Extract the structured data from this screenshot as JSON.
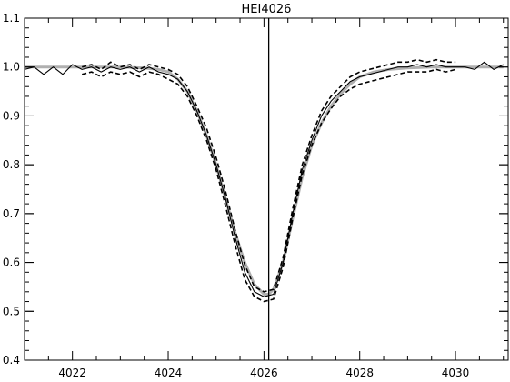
{
  "chart_data": {
    "type": "line",
    "title": "HEI4026",
    "xlabel": "",
    "ylabel": "",
    "xlim": [
      4021,
      4031.1
    ],
    "ylim": [
      0.4,
      1.1
    ],
    "x_ticks": [
      4022,
      4024,
      4026,
      4028,
      4030
    ],
    "x_tick_labels": [
      "4022",
      "4024",
      "4026",
      "4028",
      "4030"
    ],
    "y_ticks": [
      0.4,
      0.5,
      0.6,
      0.7,
      0.8,
      0.9,
      1.0,
      1.1
    ],
    "y_tick_labels": [
      "0.4",
      "0.5",
      "0.6",
      "0.7",
      "0.8",
      "0.9",
      "1.0",
      "1.1"
    ],
    "grid": false,
    "vertical_line": {
      "x": 4026.1
    },
    "series": [
      {
        "style": "solid",
        "color": "#000000",
        "x": [
          4021.0,
          4021.2,
          4021.4,
          4021.6,
          4021.8,
          4022.0,
          4022.2,
          4022.4,
          4022.6,
          4022.8,
          4023.0,
          4023.2,
          4023.4,
          4023.6,
          4023.8,
          4024.0,
          4024.2,
          4024.4,
          4024.6,
          4024.8,
          4025.0,
          4025.2,
          4025.4,
          4025.6,
          4025.8,
          4026.0,
          4026.2,
          4026.4,
          4026.6,
          4026.8,
          4027.0,
          4027.2,
          4027.4,
          4027.6,
          4027.8,
          4028.0,
          4028.2,
          4028.4,
          4028.6,
          4028.8,
          4029.0,
          4029.2,
          4029.4,
          4029.6,
          4029.8,
          4030.0,
          4030.2,
          4030.4,
          4030.6,
          4030.8,
          4031.0
        ],
        "y": [
          0.995,
          1.0,
          0.985,
          1.0,
          0.985,
          1.005,
          0.995,
          1.0,
          0.99,
          1.0,
          0.995,
          1.0,
          0.99,
          1.0,
          0.99,
          0.985,
          0.975,
          0.95,
          0.91,
          0.86,
          0.8,
          0.73,
          0.65,
          0.58,
          0.54,
          0.53,
          0.535,
          0.6,
          0.7,
          0.79,
          0.85,
          0.9,
          0.93,
          0.95,
          0.97,
          0.98,
          0.985,
          0.99,
          0.995,
          1.0,
          1.0,
          1.005,
          1.0,
          1.005,
          1.0,
          1.0,
          1.0,
          0.995,
          1.01,
          0.995,
          1.005
        ]
      },
      {
        "style": "dashed",
        "color": "#000000",
        "x": [
          4022.2,
          4022.4,
          4022.6,
          4022.8,
          4023.0,
          4023.2,
          4023.4,
          4023.6,
          4023.8,
          4024.0,
          4024.2,
          4024.4,
          4024.6,
          4024.8,
          4025.0,
          4025.2,
          4025.4,
          4025.6,
          4025.8,
          4026.0,
          4026.2,
          4026.4,
          4026.6,
          4026.8,
          4027.0,
          4027.2,
          4027.4,
          4027.6,
          4027.8,
          4028.0,
          4028.2,
          4028.4,
          4028.6,
          4028.8,
          4029.0,
          4029.2,
          4029.4,
          4029.6,
          4029.8,
          4030.0
        ],
        "y": [
          1.0,
          1.005,
          0.995,
          1.01,
          1.0,
          1.005,
          0.995,
          1.005,
          1.0,
          0.995,
          0.985,
          0.96,
          0.92,
          0.875,
          0.815,
          0.745,
          0.665,
          0.595,
          0.55,
          0.54,
          0.545,
          0.61,
          0.71,
          0.8,
          0.86,
          0.91,
          0.94,
          0.96,
          0.98,
          0.99,
          0.995,
          1.0,
          1.005,
          1.01,
          1.01,
          1.015,
          1.01,
          1.015,
          1.01,
          1.01
        ]
      },
      {
        "style": "dashed",
        "color": "#000000",
        "x": [
          4022.2,
          4022.4,
          4022.6,
          4022.8,
          4023.0,
          4023.2,
          4023.4,
          4023.6,
          4023.8,
          4024.0,
          4024.2,
          4024.4,
          4024.6,
          4024.8,
          4025.0,
          4025.2,
          4025.4,
          4025.6,
          4025.8,
          4026.0,
          4026.2,
          4026.4,
          4026.6,
          4026.8,
          4027.0,
          4027.2,
          4027.4,
          4027.6,
          4027.8,
          4028.0,
          4028.2,
          4028.4,
          4028.6,
          4028.8,
          4029.0,
          4029.2,
          4029.4,
          4029.6,
          4029.8,
          4030.0
        ],
        "y": [
          0.985,
          0.99,
          0.98,
          0.99,
          0.985,
          0.99,
          0.98,
          0.99,
          0.985,
          0.975,
          0.965,
          0.94,
          0.9,
          0.85,
          0.79,
          0.715,
          0.635,
          0.565,
          0.53,
          0.52,
          0.525,
          0.59,
          0.69,
          0.78,
          0.84,
          0.885,
          0.915,
          0.94,
          0.955,
          0.965,
          0.97,
          0.975,
          0.98,
          0.985,
          0.99,
          0.99,
          0.99,
          0.995,
          0.99,
          0.995
        ]
      },
      {
        "style": "model",
        "color": "#b0b0b0",
        "x": [
          4021.0,
          4021.5,
          4022.0,
          4022.5,
          4023.0,
          4023.5,
          4023.8,
          4024.0,
          4024.2,
          4024.4,
          4024.6,
          4024.8,
          4025.0,
          4025.2,
          4025.4,
          4025.6,
          4025.8,
          4026.0,
          4026.1,
          4026.2,
          4026.4,
          4026.6,
          4026.8,
          4027.0,
          4027.2,
          4027.4,
          4027.6,
          4027.8,
          4028.0,
          4028.3,
          4028.6,
          4029.0,
          4029.5,
          4030.0,
          4030.5,
          4031.0
        ],
        "y": [
          1.0,
          1.0,
          1.0,
          1.0,
          1.0,
          0.998,
          0.995,
          0.99,
          0.975,
          0.95,
          0.91,
          0.86,
          0.8,
          0.73,
          0.66,
          0.6,
          0.555,
          0.535,
          0.535,
          0.545,
          0.6,
          0.69,
          0.775,
          0.84,
          0.885,
          0.92,
          0.945,
          0.965,
          0.98,
          0.99,
          0.995,
          0.998,
          1.0,
          1.0,
          1.0,
          1.0
        ]
      }
    ]
  }
}
